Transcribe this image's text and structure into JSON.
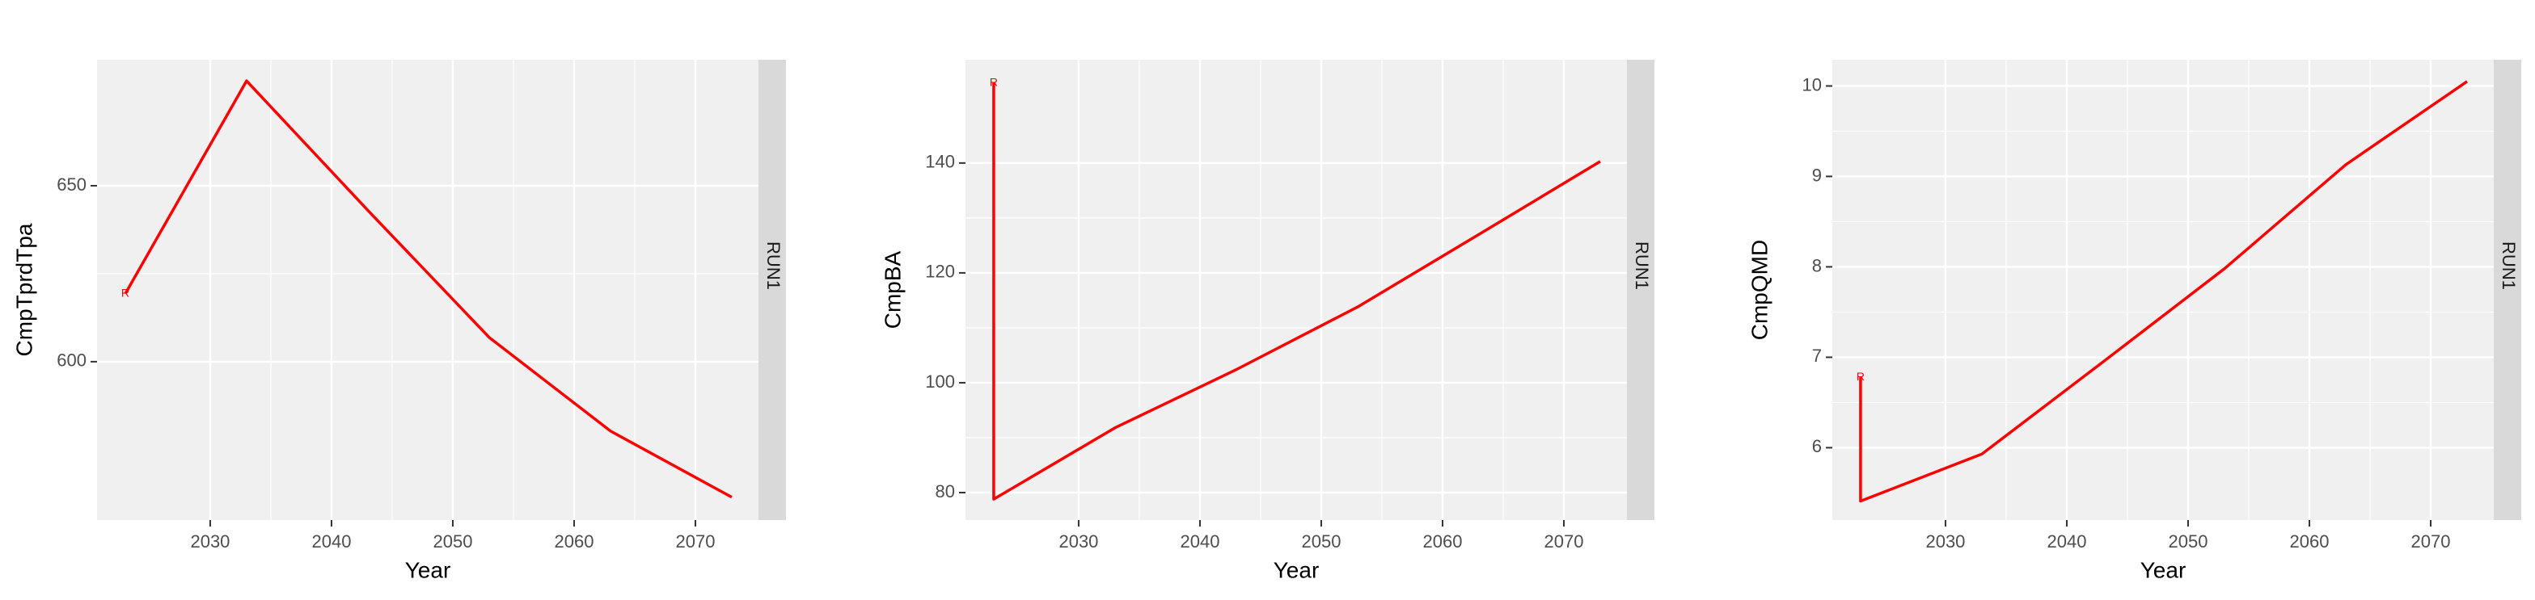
{
  "chart_data": [
    {
      "type": "line",
      "x_label": "Year",
      "y_label": "CmpTprdTpa",
      "strip": "RUN1",
      "annotation": "R",
      "x": [
        2023,
        2033,
        2043,
        2053,
        2063,
        2073
      ],
      "values": [
        619.3,
        679.8,
        643,
        606.9,
        580.3,
        561.5
      ],
      "color": "#ff0000",
      "xlim": [
        2020.67,
        2075.2
      ],
      "xticks": [
        2030,
        2040,
        2050,
        2060,
        2070
      ],
      "ylim": [
        555,
        685.8
      ],
      "yticks": [
        600,
        650
      ],
      "grid": true
    },
    {
      "type": "line",
      "x_label": "Year",
      "y_label": "CmpBA",
      "strip": "RUN1",
      "annotation": "R",
      "x": [
        2023,
        2023,
        2033,
        2043,
        2053,
        2063,
        2073
      ],
      "values": [
        154.6,
        78.8,
        91.8,
        102.4,
        113.8,
        127,
        140.3
      ],
      "color": "#ff0000",
      "xlim": [
        2020.67,
        2075.2
      ],
      "xticks": [
        2030,
        2040,
        2050,
        2060,
        2070
      ],
      "ylim": [
        75,
        158.8
      ],
      "yticks": [
        80,
        100,
        120,
        140
      ],
      "grid": true
    },
    {
      "type": "line",
      "x_label": "Year",
      "y_label": "CmpQMD",
      "strip": "RUN1",
      "annotation": "R",
      "x": [
        2023,
        2023,
        2033,
        2043,
        2053,
        2063,
        2073
      ],
      "values": [
        6.78,
        5.41,
        5.93,
        6.95,
        7.98,
        9.13,
        10.05
      ],
      "color": "#ff0000",
      "xlim": [
        2020.67,
        2075.2
      ],
      "xticks": [
        2030,
        2040,
        2050,
        2060,
        2070
      ],
      "ylim": [
        5.2,
        10.29
      ],
      "yticks": [
        6,
        7,
        8,
        9,
        10
      ],
      "grid": true
    }
  ]
}
